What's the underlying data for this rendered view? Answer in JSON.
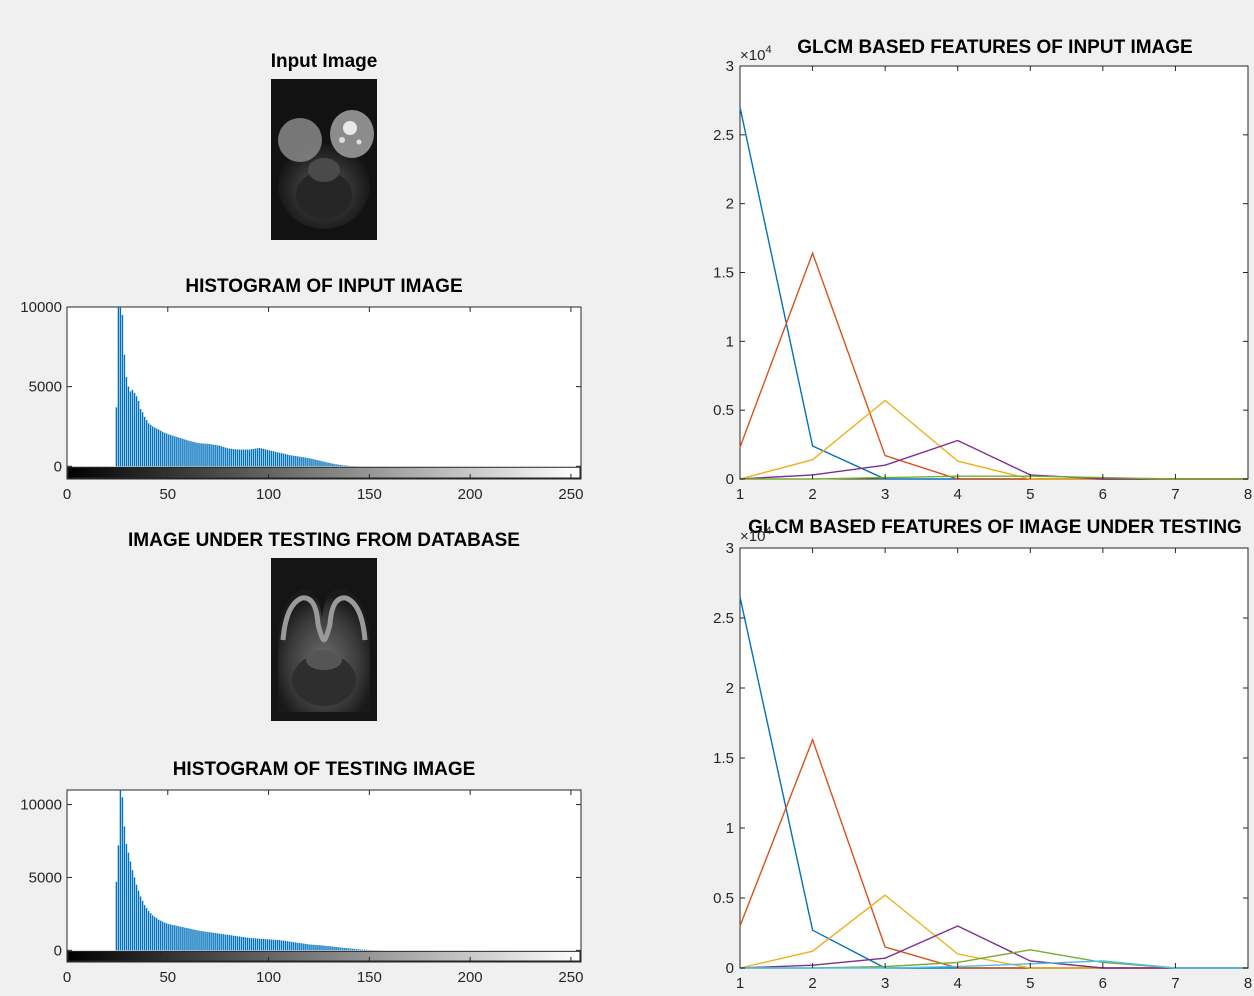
{
  "chart_data": [
    {
      "type": "image",
      "title": "Input Image",
      "image": {
        "description_key": "breast MRI slice",
        "tone": "dark"
      }
    },
    {
      "type": "bar",
      "title": "HISTOGRAM OF INPUT IMAGE",
      "xlim": [
        0,
        255
      ],
      "ylim": [
        -800,
        10000
      ],
      "xticks": [
        0,
        50,
        100,
        150,
        200,
        250
      ],
      "yticks": [
        0,
        5000,
        10000
      ],
      "colorbar": "grayscale",
      "bar_color": "#0072BD",
      "bins": [
        [
          24,
          3700
        ],
        [
          25,
          10000
        ],
        [
          26,
          10000
        ],
        [
          27,
          9500
        ],
        [
          28,
          7000
        ],
        [
          29,
          5600
        ],
        [
          30,
          5000
        ],
        [
          31,
          4700
        ],
        [
          32,
          4800
        ],
        [
          33,
          4600
        ],
        [
          34,
          4400
        ],
        [
          35,
          4100
        ],
        [
          36,
          3600
        ],
        [
          37,
          3400
        ],
        [
          38,
          3100
        ],
        [
          39,
          2900
        ],
        [
          40,
          2700
        ],
        [
          42,
          2500
        ],
        [
          45,
          2300
        ],
        [
          48,
          2100
        ],
        [
          50,
          2000
        ],
        [
          55,
          1800
        ],
        [
          60,
          1600
        ],
        [
          65,
          1450
        ],
        [
          70,
          1400
        ],
        [
          75,
          1300
        ],
        [
          80,
          1100
        ],
        [
          85,
          1050
        ],
        [
          90,
          1050
        ],
        [
          95,
          1150
        ],
        [
          100,
          1000
        ],
        [
          105,
          850
        ],
        [
          110,
          700
        ],
        [
          115,
          600
        ],
        [
          120,
          500
        ],
        [
          125,
          350
        ],
        [
          130,
          200
        ],
        [
          135,
          80
        ],
        [
          140,
          20
        ]
      ]
    },
    {
      "type": "line",
      "title": "GLCM BASED FEATURES OF INPUT IMAGE",
      "xlim": [
        1,
        8
      ],
      "ylim": [
        0,
        3
      ],
      "y_exponent": "10^4",
      "xticks": [
        1,
        2,
        3,
        4,
        5,
        6,
        7,
        8
      ],
      "yticks": [
        0,
        0.5,
        1,
        1.5,
        2,
        2.5,
        3
      ],
      "x": [
        1,
        2,
        3,
        4,
        5,
        6,
        7,
        8
      ],
      "series": [
        {
          "color": "#0072BD",
          "values": [
            2.7,
            0.24,
            0,
            0,
            0,
            0,
            0,
            0
          ]
        },
        {
          "color": "#D95319",
          "values": [
            0.23,
            1.64,
            0.17,
            0,
            0,
            0,
            0,
            0
          ]
        },
        {
          "color": "#EDB120",
          "values": [
            0,
            0.14,
            0.57,
            0.13,
            0,
            0,
            0,
            0
          ]
        },
        {
          "color": "#7E2F8E",
          "values": [
            0,
            0.03,
            0.1,
            0.28,
            0.03,
            0,
            0,
            0
          ]
        },
        {
          "color": "#77AC30",
          "values": [
            0,
            0,
            0.01,
            0.02,
            0.02,
            0.01,
            0,
            0
          ]
        }
      ]
    },
    {
      "type": "image",
      "title": "IMAGE UNDER TESTING FROM DATABASE",
      "image": {
        "description_key": "breast MRI slice",
        "tone": "gray"
      }
    },
    {
      "type": "bar",
      "title": "HISTOGRAM OF TESTING IMAGE",
      "xlim": [
        0,
        255
      ],
      "ylim": [
        -800,
        11000
      ],
      "xticks": [
        0,
        50,
        100,
        150,
        200,
        250
      ],
      "yticks": [
        0,
        5000,
        10000
      ],
      "colorbar": "grayscale",
      "bar_color": "#0072BD",
      "bins": [
        [
          24,
          4700
        ],
        [
          25,
          7200
        ],
        [
          26,
          11000
        ],
        [
          27,
          10500
        ],
        [
          28,
          8500
        ],
        [
          29,
          7300
        ],
        [
          30,
          6700
        ],
        [
          31,
          6100
        ],
        [
          32,
          5500
        ],
        [
          33,
          5000
        ],
        [
          34,
          4500
        ],
        [
          35,
          4100
        ],
        [
          36,
          3700
        ],
        [
          37,
          3400
        ],
        [
          38,
          3100
        ],
        [
          39,
          2900
        ],
        [
          40,
          2700
        ],
        [
          42,
          2400
        ],
        [
          45,
          2100
        ],
        [
          48,
          1900
        ],
        [
          50,
          1800
        ],
        [
          55,
          1650
        ],
        [
          60,
          1500
        ],
        [
          65,
          1350
        ],
        [
          70,
          1250
        ],
        [
          75,
          1150
        ],
        [
          80,
          1050
        ],
        [
          85,
          950
        ],
        [
          90,
          850
        ],
        [
          95,
          800
        ],
        [
          100,
          750
        ],
        [
          105,
          700
        ],
        [
          110,
          600
        ],
        [
          115,
          500
        ],
        [
          120,
          400
        ],
        [
          125,
          350
        ],
        [
          130,
          280
        ],
        [
          135,
          200
        ],
        [
          140,
          130
        ],
        [
          145,
          60
        ],
        [
          150,
          20
        ]
      ]
    },
    {
      "type": "line",
      "title": "GLCM BASED FEATURES OF IMAGE UNDER TESTING",
      "xlim": [
        1,
        8
      ],
      "ylim": [
        0,
        3
      ],
      "y_exponent": "10^4",
      "xticks": [
        1,
        2,
        3,
        4,
        5,
        6,
        7,
        8
      ],
      "yticks": [
        0,
        0.5,
        1,
        1.5,
        2,
        2.5,
        3
      ],
      "x": [
        1,
        2,
        3,
        4,
        5,
        6,
        7,
        8
      ],
      "series": [
        {
          "color": "#0072BD",
          "values": [
            2.65,
            0.27,
            0,
            0,
            0,
            0,
            0,
            0
          ]
        },
        {
          "color": "#D95319",
          "values": [
            0.3,
            1.63,
            0.15,
            0,
            0,
            0,
            0,
            0
          ]
        },
        {
          "color": "#EDB120",
          "values": [
            0,
            0.12,
            0.52,
            0.1,
            0,
            0,
            0,
            0
          ]
        },
        {
          "color": "#7E2F8E",
          "values": [
            0,
            0.02,
            0.07,
            0.3,
            0.05,
            0,
            0,
            0
          ]
        },
        {
          "color": "#77AC30",
          "values": [
            0,
            0,
            0.01,
            0.04,
            0.13,
            0.04,
            0,
            0
          ]
        },
        {
          "color": "#4DBEEE",
          "values": [
            0,
            0,
            0,
            0.01,
            0.03,
            0.05,
            0,
            0
          ]
        }
      ]
    }
  ]
}
